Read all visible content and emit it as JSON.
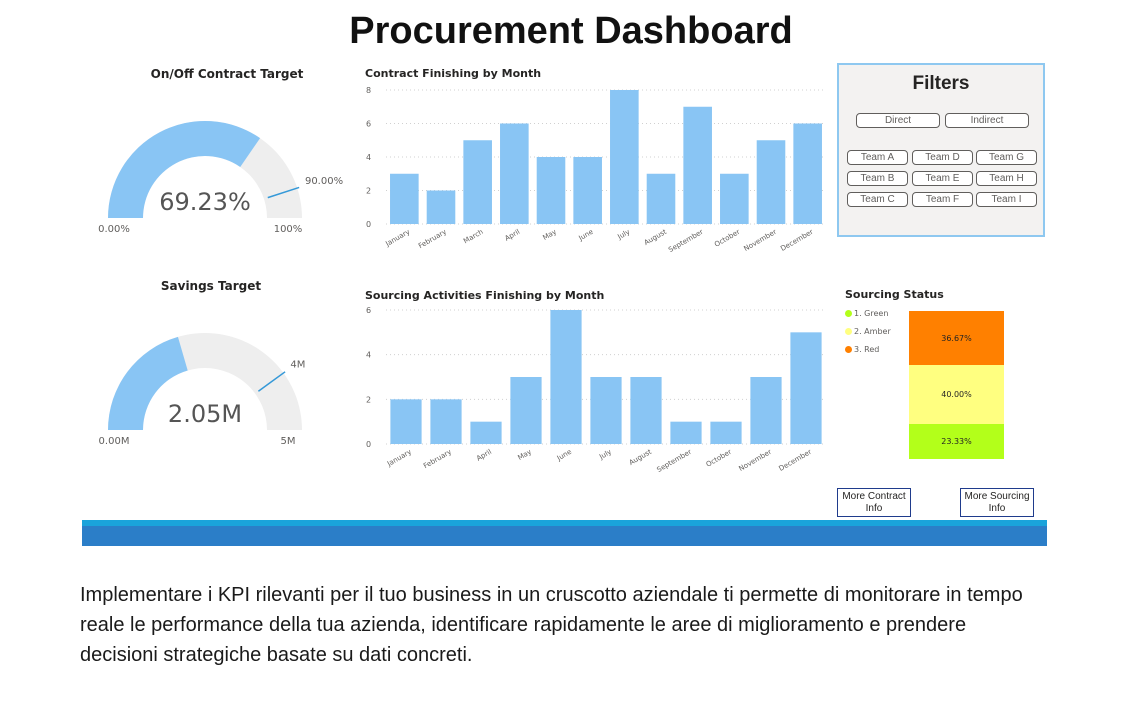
{
  "dashboard": {
    "title": "Procurement Dashboard"
  },
  "gauges": {
    "contract": {
      "title": "On/Off Contract Target",
      "value_label": "69.23%",
      "value_fraction": 0.6923,
      "target_label": "90.00%",
      "target_fraction": 0.9,
      "min_label": "0.00%",
      "max_label": "100%",
      "fill_color": "#89c5f4",
      "track_color": "#eeeeee",
      "target_color": "#3599d8"
    },
    "savings": {
      "title": "Savings Target",
      "value_label": "2.05M",
      "value_fraction": 0.41,
      "target_label": "4M",
      "target_fraction": 0.8,
      "min_label": "0.00M",
      "max_label": "5M",
      "fill_color": "#89c5f4",
      "track_color": "#eeeeee",
      "target_color": "#3599d8"
    }
  },
  "chart_data": [
    {
      "type": "bar",
      "title": "Contract Finishing by Month",
      "categories": [
        "January",
        "February",
        "March",
        "April",
        "May",
        "June",
        "July",
        "August",
        "September",
        "October",
        "November",
        "December"
      ],
      "values": [
        3,
        2,
        5,
        6,
        4,
        4,
        8,
        3,
        7,
        3,
        5,
        6
      ],
      "yticks": [
        0,
        2,
        4,
        6,
        8
      ],
      "ylim": [
        0,
        8
      ],
      "grid": true,
      "color": "#89c5f4"
    },
    {
      "type": "bar",
      "title": "Sourcing Activities Finishing by Month",
      "categories": [
        "January",
        "February",
        "April",
        "May",
        "June",
        "July",
        "August",
        "September",
        "October",
        "November",
        "December"
      ],
      "values": [
        2,
        2,
        1,
        3,
        6,
        3,
        3,
        1,
        1,
        3,
        5
      ],
      "yticks": [
        0,
        2,
        4,
        6
      ],
      "ylim": [
        0,
        6
      ],
      "grid": true,
      "color": "#89c5f4"
    },
    {
      "type": "bar",
      "stacked": true,
      "title": "Sourcing Status",
      "legend_position": "top-left",
      "series": [
        {
          "name": "1. Green",
          "value": 23.33,
          "label": "23.33%",
          "color": "#b3ff1a"
        },
        {
          "name": "2. Amber",
          "value": 40.0,
          "label": "40.00%",
          "color": "#ffff80"
        },
        {
          "name": "3. Red",
          "value": 36.67,
          "label": "36.67%",
          "color": "#ff8000"
        }
      ]
    }
  ],
  "filters": {
    "title": "Filters",
    "type_buttons": [
      "Direct",
      "Indirect"
    ],
    "team_buttons": [
      "Team A",
      "Team D",
      "Team G",
      "Team B",
      "Team E",
      "Team H",
      "Team C",
      "Team F",
      "Team I"
    ]
  },
  "navigation": {
    "contract_button": "More Contract Info",
    "sourcing_button": "More Sourcing Info"
  },
  "colors": {
    "bar": "#89c5f4",
    "footer_top": "#1aa3db",
    "footer": "#2b7ec8",
    "filter_border": "#8ec8f0"
  },
  "description": "Implementare i KPI rilevanti per il tuo business in un cruscotto aziendale ti permette di monitorare in tempo reale le performance della tua azienda, identificare rapidamente le aree di miglioramento e prendere decisioni strategiche basate su dati concreti."
}
